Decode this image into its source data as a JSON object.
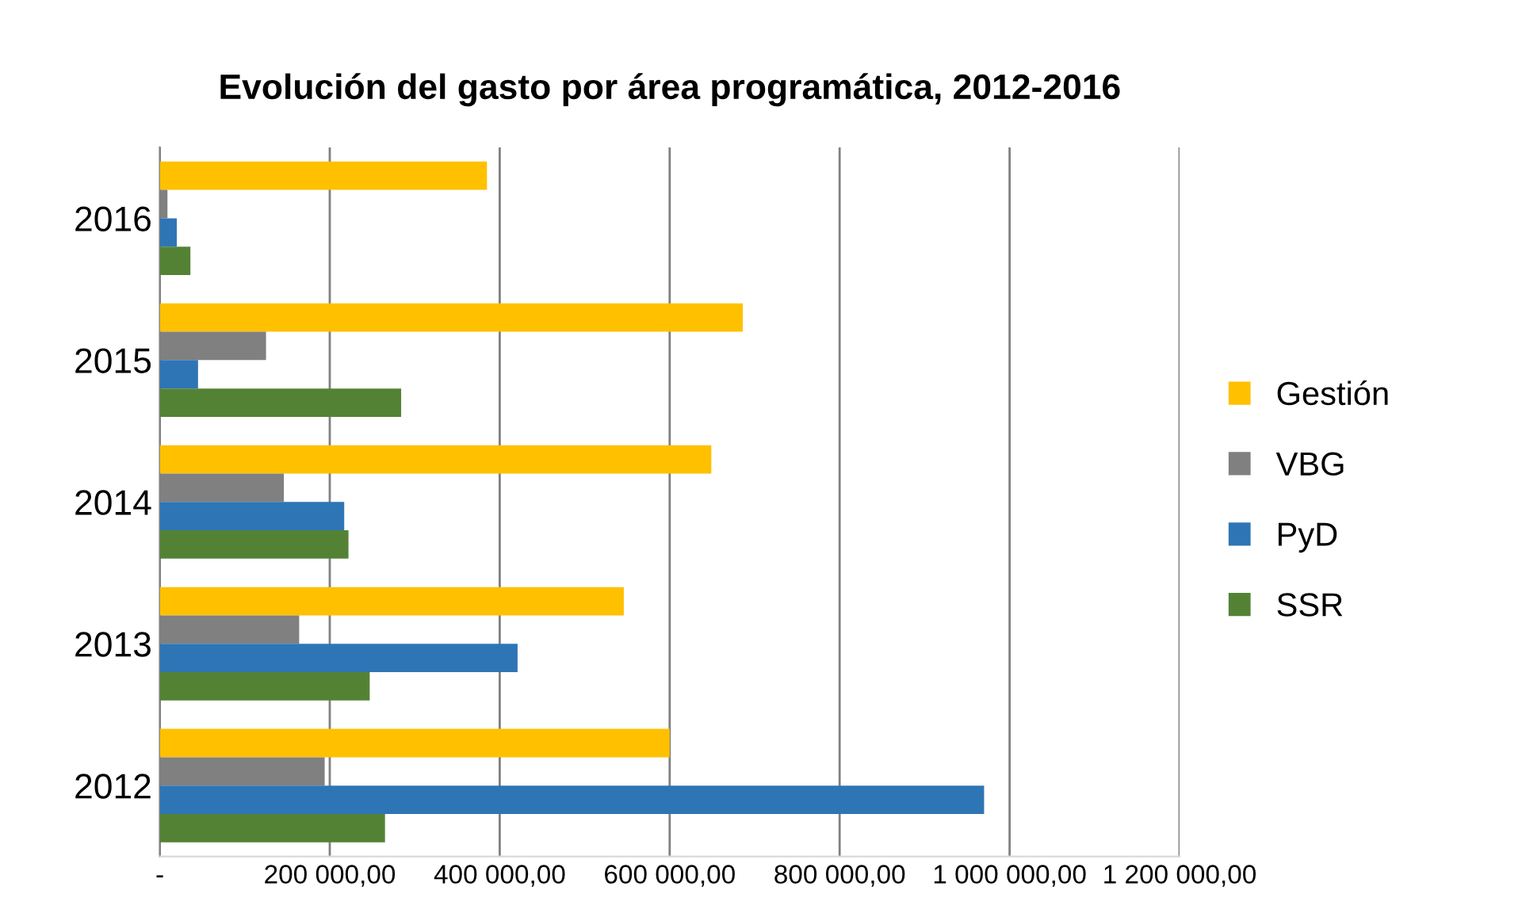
{
  "chart_data": {
    "type": "bar",
    "orientation": "horizontal",
    "title": "Evolución del gasto por área programática, 2012-2016",
    "categories": [
      "2016",
      "2015",
      "2014",
      "2013",
      "2012"
    ],
    "series": [
      {
        "name": "Gestión",
        "color": "#ffc000",
        "values": [
          385000,
          686000,
          649000,
          546000,
          600000
        ]
      },
      {
        "name": "VBG",
        "color": "#808080",
        "values": [
          9000,
          125000,
          146000,
          164000,
          194000
        ]
      },
      {
        "name": "PyD",
        "color": "#2e75b6",
        "values": [
          20000,
          45000,
          217000,
          421000,
          970000
        ]
      },
      {
        "name": "SSR",
        "color": "#548235",
        "values": [
          36000,
          284000,
          222000,
          247000,
          265000
        ]
      }
    ],
    "xlim": [
      0,
      1200000
    ],
    "xticks": [
      {
        "value": 0,
        "label": "-"
      },
      {
        "value": 200000,
        "label": "200 000,00"
      },
      {
        "value": 400000,
        "label": "400 000,00"
      },
      {
        "value": 600000,
        "label": "600 000,00"
      },
      {
        "value": 800000,
        "label": "800 000,00"
      },
      {
        "value": 1000000,
        "label": "1 000 000,00"
      },
      {
        "value": 1200000,
        "label": "1 200 000,00"
      }
    ],
    "grid": "x",
    "legend": "right"
  }
}
